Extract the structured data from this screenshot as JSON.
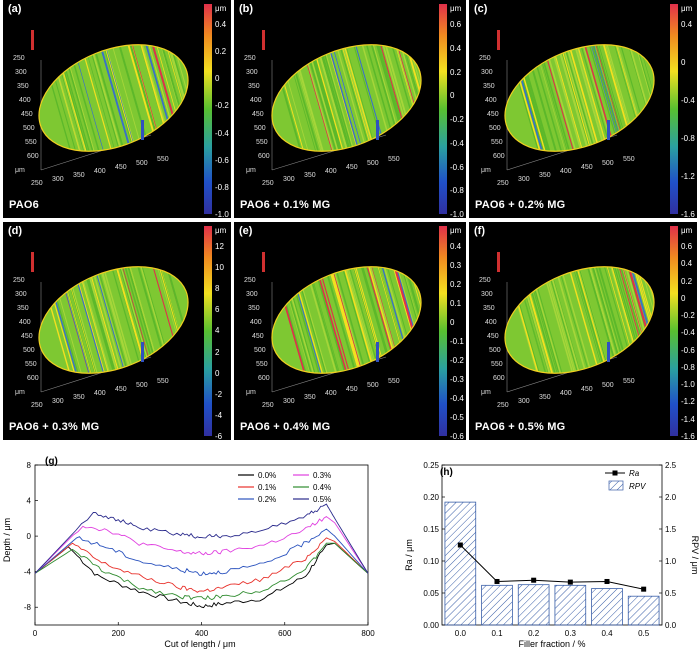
{
  "panels": [
    {
      "label": "(a)",
      "caption": "PAO6",
      "unit": "μm",
      "cbar": [
        "0.4",
        "0.2",
        "0",
        "-0.2",
        "-0.4",
        "-0.6",
        "-0.8",
        "-1.0"
      ]
    },
    {
      "label": "(b)",
      "caption": "PAO6 + 0.1% MG",
      "unit": "μm",
      "cbar": [
        "0.6",
        "0.4",
        "0.2",
        "0",
        "-0.2",
        "-0.4",
        "-0.6",
        "-0.8",
        "-1.0"
      ]
    },
    {
      "label": "(c)",
      "caption": "PAO6 + 0.2% MG",
      "unit": "μm",
      "cbar": [
        "0.4",
        "0",
        "-0.4",
        "-0.8",
        "-1.2",
        "-1.6"
      ]
    },
    {
      "label": "(d)",
      "caption": "PAO6 + 0.3% MG",
      "unit": "μm",
      "cbar": [
        "12",
        "10",
        "8",
        "6",
        "4",
        "2",
        "0",
        "-2",
        "-4",
        "-6"
      ]
    },
    {
      "label": "(e)",
      "caption": "PAO6 + 0.4% MG",
      "unit": "μm",
      "cbar": [
        "0.4",
        "0.3",
        "0.2",
        "0.1",
        "0",
        "-0.1",
        "-0.2",
        "-0.3",
        "-0.4",
        "-0.5",
        "-0.6"
      ]
    },
    {
      "label": "(f)",
      "caption": "PAO6 + 0.5% MG",
      "unit": "μm",
      "cbar": [
        "0.6",
        "0.4",
        "0.2",
        "0",
        "-0.2",
        "-0.4",
        "-0.6",
        "-0.8",
        "-1.0",
        "-1.2",
        "-1.4",
        "-1.6"
      ]
    }
  ],
  "panel_axis": {
    "y_ticks": [
      "250",
      "300",
      "350",
      "400",
      "450",
      "500",
      "550",
      "600"
    ],
    "x_ticks": [
      "250",
      "300",
      "350",
      "400",
      "450",
      "500",
      "550"
    ],
    "unit": "μm"
  },
  "colors": {
    "panel_bg": "#000000",
    "surface_green": "#7ec832",
    "series": [
      "#000000",
      "#e8302a",
      "#2a52be",
      "#e040e0",
      "#2e8b2e",
      "#2a2a8c"
    ],
    "bar_hatch": "#3a5fa8",
    "rpv_line": "#000000"
  },
  "chart_data": [
    {
      "type": "line",
      "label": "(g)",
      "xlabel": "Cut of length / μm",
      "ylabel": "Depth / μm",
      "xlim": [
        0,
        800
      ],
      "ylim": [
        -10,
        8
      ],
      "x_ticks": [
        "0",
        "200",
        "400",
        "600",
        "800"
      ],
      "y_ticks": [
        "8",
        "4",
        "0",
        "-4",
        "-8"
      ],
      "x_tick_values": [
        0,
        200,
        400,
        600,
        800
      ],
      "y_tick_values": [
        8,
        4,
        0,
        -4,
        -8
      ],
      "legend": "top-right",
      "series": [
        {
          "name": "0.0%",
          "x": [
            0,
            80,
            150,
            250,
            350,
            400,
            450,
            550,
            650,
            700,
            720,
            800
          ],
          "y": [
            -4.2,
            -1.2,
            -4.5,
            -6.2,
            -7.4,
            -7.9,
            -7.6,
            -7.0,
            -4.5,
            -1.0,
            -0.8,
            -4.2
          ]
        },
        {
          "name": "0.1%",
          "x": [
            0,
            90,
            160,
            250,
            350,
            400,
            450,
            550,
            650,
            700,
            720,
            800
          ],
          "y": [
            -4.2,
            -0.8,
            -3.0,
            -4.5,
            -5.8,
            -6.2,
            -5.8,
            -4.8,
            -2.5,
            -0.2,
            -0.6,
            -4.2
          ]
        },
        {
          "name": "0.2%",
          "x": [
            0,
            100,
            170,
            250,
            350,
            400,
            450,
            550,
            640,
            700,
            720,
            800
          ],
          "y": [
            -4.2,
            -0.2,
            -1.2,
            -2.8,
            -3.8,
            -4.2,
            -4.0,
            -3.2,
            -1.0,
            0.8,
            0.0,
            -4.2
          ]
        },
        {
          "name": "0.3%",
          "x": [
            0,
            115,
            180,
            250,
            350,
            400,
            450,
            550,
            645,
            700,
            720,
            800
          ],
          "y": [
            -4.2,
            1.2,
            0.6,
            -0.8,
            -1.8,
            -2.0,
            -1.8,
            -1.0,
            0.6,
            2.2,
            1.5,
            -4.2
          ]
        },
        {
          "name": "0.4%",
          "x": [
            0,
            90,
            160,
            250,
            350,
            400,
            450,
            550,
            650,
            700,
            720,
            800
          ],
          "y": [
            -4.2,
            -1.5,
            -3.8,
            -5.8,
            -6.8,
            -7.0,
            -6.8,
            -6.0,
            -3.8,
            -0.8,
            -0.8,
            -4.2
          ]
        },
        {
          "name": "0.5%",
          "x": [
            0,
            140,
            200,
            260,
            350,
            400,
            450,
            550,
            655,
            700,
            720,
            800
          ],
          "y": [
            -4.2,
            2.7,
            1.8,
            0.8,
            0.2,
            -0.1,
            0.0,
            0.6,
            2.4,
            3.6,
            2.0,
            -4.2
          ]
        }
      ]
    },
    {
      "type": "bar",
      "label": "(h)",
      "xlabel": "Filler fraction / %",
      "ylabel_left": "Ra / μm",
      "ylabel_right": "RPV / μm",
      "categories": [
        "0.0",
        "0.1",
        "0.2",
        "0.3",
        "0.4",
        "0.5"
      ],
      "ylim_left": [
        0,
        0.25
      ],
      "ylim_right": [
        0,
        2.5
      ],
      "y_ticks_left": [
        "0.00",
        "0.05",
        "0.10",
        "0.15",
        "0.20",
        "0.25"
      ],
      "y_ticks_right": [
        "0.0",
        "0.5",
        "1.0",
        "1.5",
        "2.0",
        "2.5"
      ],
      "legend": "top-right",
      "legend_ra": "Ra",
      "legend_rpv": "RPV",
      "series": [
        {
          "name": "RPV",
          "axis": "right",
          "kind": "bar",
          "values": [
            1.92,
            0.62,
            0.63,
            0.62,
            0.57,
            0.45
          ]
        },
        {
          "name": "Ra",
          "axis": "left",
          "kind": "line",
          "values": [
            0.125,
            0.068,
            0.07,
            0.067,
            0.068,
            0.056
          ]
        }
      ]
    }
  ]
}
